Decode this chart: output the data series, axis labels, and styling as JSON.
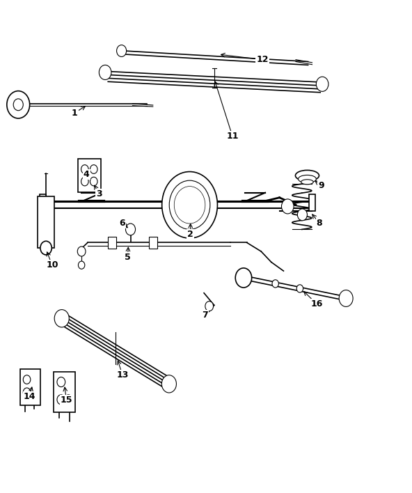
{
  "bg_color": "#ffffff",
  "line_color": "#000000",
  "label_color": "#000000",
  "figsize": [
    5.92,
    7.08
  ],
  "dpi": 100
}
